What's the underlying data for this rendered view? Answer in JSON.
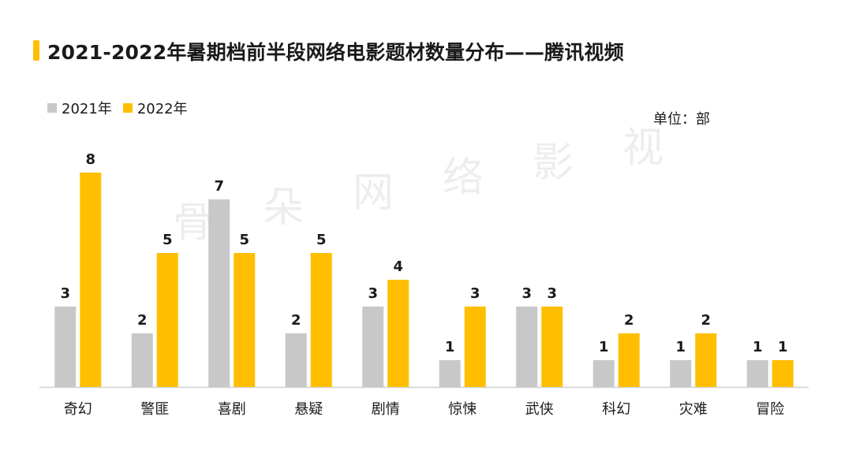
{
  "title": "2021-2022年暑期档前半段网络电影题材数量分布——腾讯视频",
  "unit_label": "单位：部",
  "watermark": "骨朵网络影视",
  "colors": {
    "accent": "#ffbf00",
    "series_2021": "#c8c8c8",
    "series_2022": "#ffbf00",
    "axis": "#d0d0d0"
  },
  "chart_data": {
    "type": "bar",
    "categories": [
      "奇幻",
      "警匪",
      "喜剧",
      "悬疑",
      "剧情",
      "惊悚",
      "武侠",
      "科幻",
      "灾难",
      "冒险"
    ],
    "series": [
      {
        "name": "2021年",
        "values": [
          3,
          2,
          7,
          2,
          3,
          1,
          3,
          1,
          1,
          1
        ]
      },
      {
        "name": "2022年",
        "values": [
          8,
          5,
          5,
          5,
          4,
          3,
          3,
          2,
          2,
          1
        ]
      }
    ],
    "ylim": [
      0,
      8
    ],
    "grid": false,
    "legend_position": "top-left"
  }
}
